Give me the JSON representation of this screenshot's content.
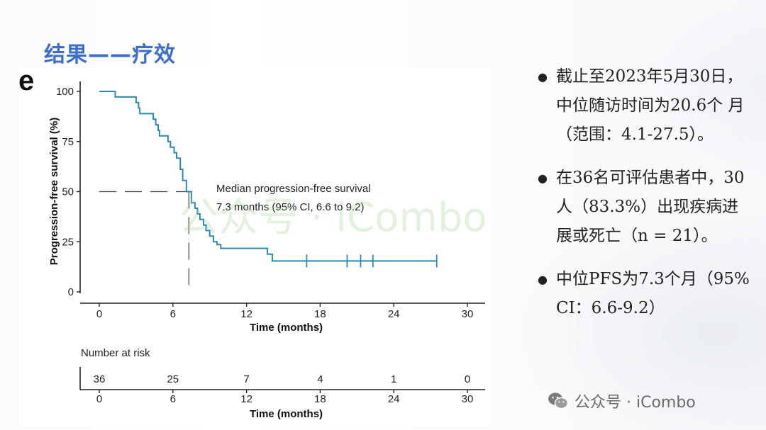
{
  "slide": {
    "title": "结果——疗效"
  },
  "panel_label": "e",
  "watermark": {
    "center_text": "公众号 · iCombo",
    "bottom_text": "公众号 · iCombo"
  },
  "bullets": [
    {
      "text": "截止至2023年5月30日，中位随访时间为20.6个 月（范围：4.1-27.5）。"
    },
    {
      "text": "在36名可评估患者中，30人（83.3%）出现疾病进展或死亡（n = 21）。"
    },
    {
      "text": "中位PFS为7.3个月（95% CI：6.6-9.2）"
    }
  ],
  "chart_data": {
    "type": "line",
    "title": "",
    "xlabel": "Time (months)",
    "ylabel": "Progression-free survival (%)",
    "xlim": [
      0,
      30
    ],
    "ylim": [
      0,
      100
    ],
    "x_ticks": [
      0,
      6,
      12,
      18,
      24,
      30
    ],
    "y_ticks": [
      0,
      25,
      50,
      75,
      100
    ],
    "color": "#2a8ab3",
    "series": [
      {
        "step": true,
        "points": [
          [
            0,
            100
          ],
          [
            1.3,
            100
          ],
          [
            1.3,
            97.2
          ],
          [
            3.0,
            97.2
          ],
          [
            3.0,
            94.4
          ],
          [
            3.2,
            94.4
          ],
          [
            3.2,
            91.7
          ],
          [
            3.3,
            91.7
          ],
          [
            3.3,
            88.9
          ],
          [
            4.4,
            88.9
          ],
          [
            4.4,
            86.1
          ],
          [
            4.6,
            86.1
          ],
          [
            4.6,
            83.3
          ],
          [
            4.8,
            83.3
          ],
          [
            4.8,
            80.6
          ],
          [
            4.9,
            80.6
          ],
          [
            4.9,
            77.8
          ],
          [
            5.6,
            77.8
          ],
          [
            5.6,
            75.0
          ],
          [
            5.8,
            75.0
          ],
          [
            5.8,
            72.2
          ],
          [
            6.1,
            72.2
          ],
          [
            6.1,
            69.4
          ],
          [
            6.3,
            69.4
          ],
          [
            6.3,
            66.7
          ],
          [
            6.6,
            66.7
          ],
          [
            6.6,
            61.1
          ],
          [
            6.8,
            61.1
          ],
          [
            6.8,
            55.6
          ],
          [
            7.1,
            55.6
          ],
          [
            7.1,
            50.0
          ],
          [
            7.5,
            50.0
          ],
          [
            7.5,
            44.4
          ],
          [
            7.8,
            44.4
          ],
          [
            7.8,
            41.7
          ],
          [
            8.0,
            41.7
          ],
          [
            8.0,
            38.9
          ],
          [
            8.2,
            38.9
          ],
          [
            8.2,
            36.1
          ],
          [
            8.5,
            36.1
          ],
          [
            8.5,
            33.3
          ],
          [
            8.7,
            33.3
          ],
          [
            8.7,
            30.6
          ],
          [
            9.0,
            30.6
          ],
          [
            9.0,
            27.8
          ],
          [
            9.3,
            27.8
          ],
          [
            9.3,
            25.0
          ],
          [
            9.6,
            25.0
          ],
          [
            9.6,
            23.6
          ],
          [
            9.9,
            23.6
          ],
          [
            9.9,
            21.7
          ],
          [
            13.7,
            21.7
          ],
          [
            13.7,
            18.8
          ],
          [
            14.1,
            18.8
          ],
          [
            14.1,
            15.4
          ],
          [
            27.5,
            15.4
          ]
        ],
        "censor_x": [
          16.9,
          20.2,
          21.3,
          22.3,
          27.5
        ],
        "censor_y": 15.4
      }
    ],
    "median_reference": {
      "x": 7.3,
      "y": 50
    },
    "annotation": [
      "Median progression-free survival",
      "7.3 months (95% CI, 6.6 to 9.2)"
    ],
    "risk_table": {
      "title": "Number at risk",
      "times": [
        0,
        6,
        12,
        18,
        24,
        30
      ],
      "counts": [
        "36",
        "25",
        "7",
        "4",
        "1",
        "0"
      ],
      "xlabel": "Time (months)"
    },
    "grid": false
  }
}
